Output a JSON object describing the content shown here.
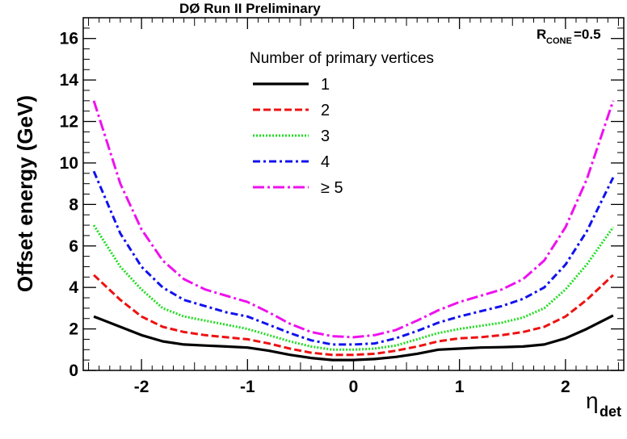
{
  "chart_data": {
    "type": "line",
    "title": "DØ Run II Preliminary",
    "annotation": {
      "main": "R",
      "sub": "CONE",
      "value": "=0.5"
    },
    "xlabel": {
      "main": "η",
      "sub": "det"
    },
    "ylabel": "Offset energy (GeV)",
    "xlim": [
      -2.55,
      2.55
    ],
    "ylim": [
      0,
      17
    ],
    "xticks": [
      -2,
      -1,
      0,
      1,
      2
    ],
    "xtick_labels": [
      "-2",
      "-1",
      "0",
      "1",
      "2"
    ],
    "yticks": [
      0,
      2,
      4,
      6,
      8,
      10,
      12,
      14,
      16
    ],
    "ytick_labels": [
      "0",
      "2",
      "4",
      "6",
      "8",
      "10",
      "12",
      "14",
      "16"
    ],
    "grid": false,
    "legend": {
      "title": "Number of primary vertices",
      "placement": "top-center"
    },
    "x": [
      -2.45,
      -2.2,
      -2.0,
      -1.8,
      -1.6,
      -1.4,
      -1.2,
      -1.0,
      -0.8,
      -0.6,
      -0.4,
      -0.2,
      0.0,
      0.2,
      0.4,
      0.6,
      0.8,
      1.0,
      1.2,
      1.4,
      1.6,
      1.8,
      2.0,
      2.2,
      2.45
    ],
    "series": [
      {
        "name": "1",
        "color": "#000000",
        "dash": "solid",
        "values": [
          2.6,
          2.1,
          1.7,
          1.4,
          1.25,
          1.2,
          1.15,
          1.1,
          0.95,
          0.75,
          0.6,
          0.5,
          0.5,
          0.55,
          0.65,
          0.8,
          1.0,
          1.05,
          1.1,
          1.12,
          1.15,
          1.25,
          1.55,
          2.0,
          2.65
        ]
      },
      {
        "name": "2",
        "color": "#ee1111",
        "dash": "dashed",
        "values": [
          4.6,
          3.4,
          2.6,
          2.1,
          1.85,
          1.7,
          1.6,
          1.5,
          1.3,
          1.05,
          0.85,
          0.75,
          0.75,
          0.8,
          0.95,
          1.15,
          1.4,
          1.55,
          1.6,
          1.7,
          1.85,
          2.1,
          2.6,
          3.4,
          4.6
        ]
      },
      {
        "name": "3",
        "color": "#22dd22",
        "dash": "dotted",
        "values": [
          7.0,
          5.0,
          3.9,
          3.0,
          2.6,
          2.4,
          2.2,
          2.0,
          1.7,
          1.4,
          1.15,
          1.0,
          1.0,
          1.05,
          1.2,
          1.5,
          1.8,
          2.0,
          2.15,
          2.3,
          2.55,
          3.0,
          3.9,
          5.1,
          6.9
        ]
      },
      {
        "name": "4",
        "color": "#1111ee",
        "dash": "dashdot",
        "values": [
          9.6,
          6.6,
          5.0,
          4.0,
          3.4,
          3.1,
          2.8,
          2.6,
          2.2,
          1.8,
          1.45,
          1.25,
          1.25,
          1.3,
          1.55,
          1.9,
          2.3,
          2.6,
          2.85,
          3.1,
          3.45,
          4.0,
          5.1,
          6.7,
          9.3
        ]
      },
      {
        "name": "≥ 5",
        "color": "#ee11ee",
        "dash": "dashdotlong",
        "values": [
          13.0,
          9.0,
          6.8,
          5.3,
          4.4,
          3.9,
          3.6,
          3.3,
          2.8,
          2.25,
          1.85,
          1.65,
          1.6,
          1.7,
          1.95,
          2.4,
          2.9,
          3.3,
          3.6,
          3.9,
          4.4,
          5.3,
          6.9,
          9.2,
          13.0
        ]
      }
    ]
  }
}
